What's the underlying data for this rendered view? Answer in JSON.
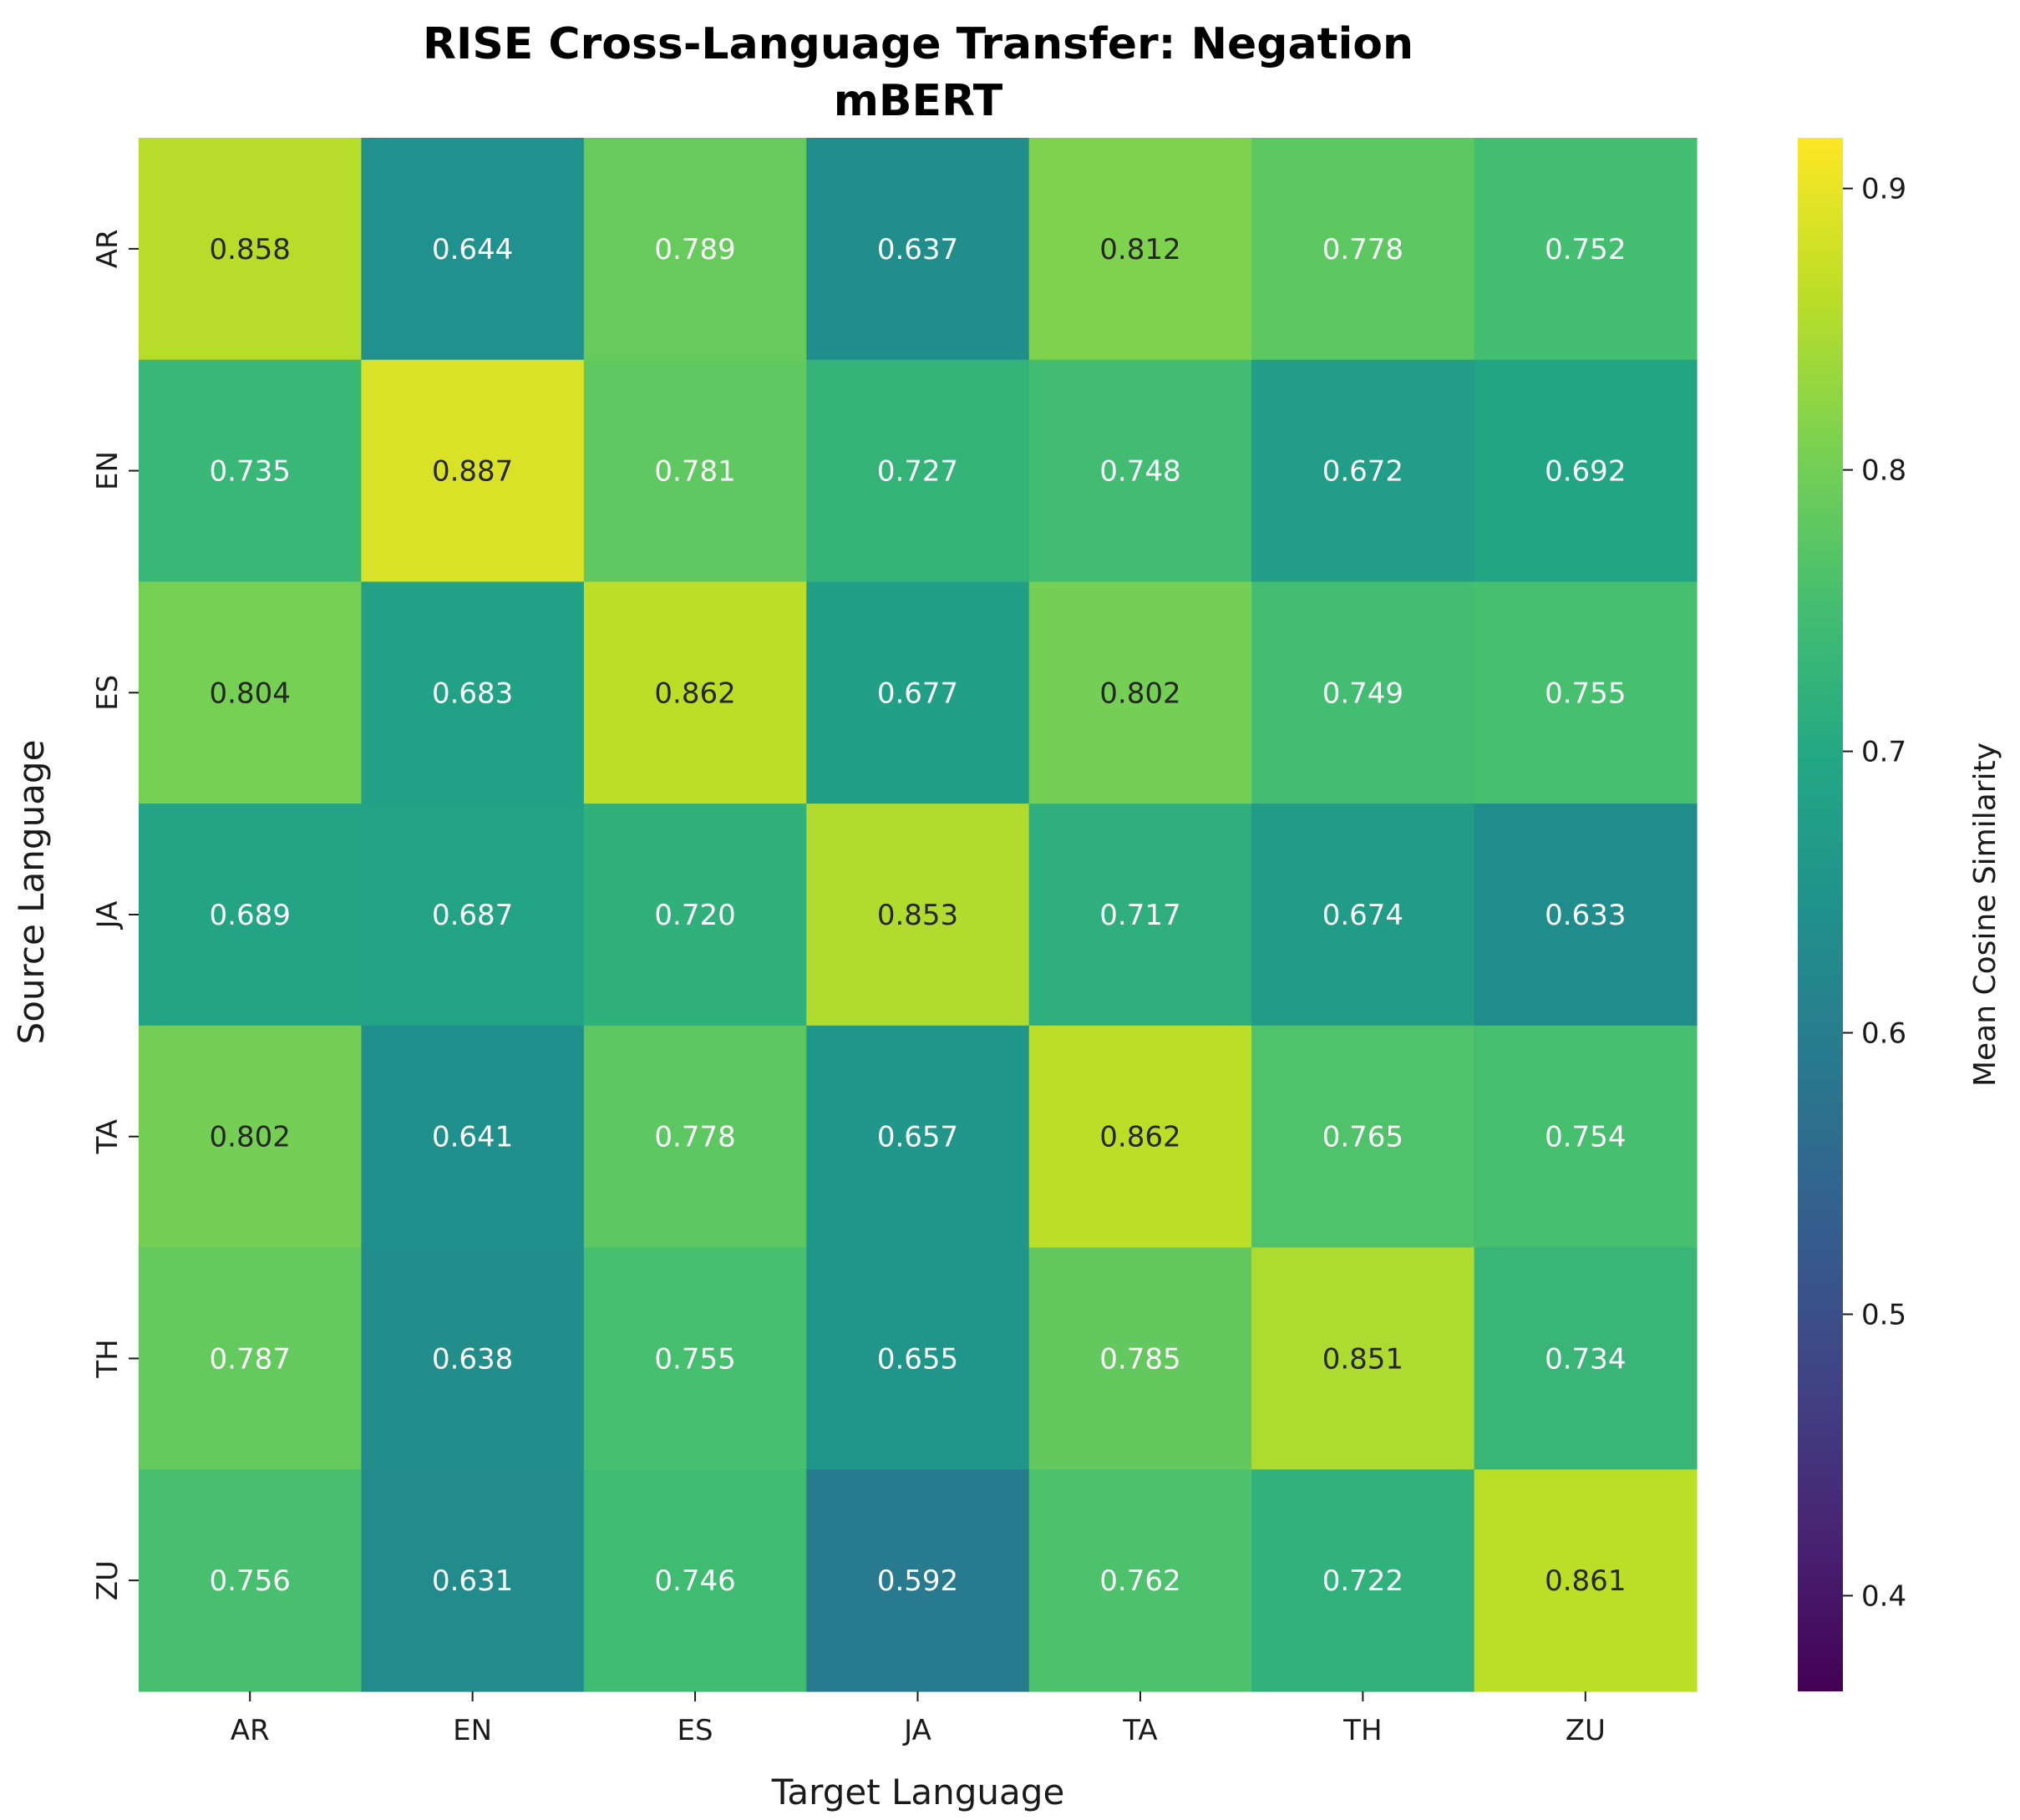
{
  "chart_data": {
    "type": "heatmap",
    "title": "RISE Cross-Language Transfer: Negation",
    "subtitle": "mBERT",
    "xlabel": "Target Language",
    "ylabel": "Source Language",
    "x_categories": [
      "AR",
      "EN",
      "ES",
      "JA",
      "TA",
      "TH",
      "ZU"
    ],
    "y_categories": [
      "AR",
      "EN",
      "ES",
      "JA",
      "TA",
      "TH",
      "ZU"
    ],
    "values": [
      [
        0.858,
        0.644,
        0.789,
        0.637,
        0.812,
        0.778,
        0.752
      ],
      [
        0.735,
        0.887,
        0.781,
        0.727,
        0.748,
        0.672,
        0.692
      ],
      [
        0.804,
        0.683,
        0.862,
        0.677,
        0.802,
        0.749,
        0.755
      ],
      [
        0.689,
        0.687,
        0.72,
        0.853,
        0.717,
        0.674,
        0.633
      ],
      [
        0.802,
        0.641,
        0.778,
        0.657,
        0.862,
        0.765,
        0.754
      ],
      [
        0.787,
        0.638,
        0.755,
        0.655,
        0.785,
        0.851,
        0.734
      ],
      [
        0.756,
        0.631,
        0.746,
        0.592,
        0.762,
        0.722,
        0.861
      ]
    ],
    "value_format": "3 decimals",
    "colormap": "viridis",
    "colorbar": {
      "label": "Mean Cosine Similarity",
      "vmin": 0.366,
      "vmax": 0.918,
      "ticks": [
        0.4,
        0.5,
        0.6,
        0.7,
        0.8,
        0.9
      ]
    }
  }
}
